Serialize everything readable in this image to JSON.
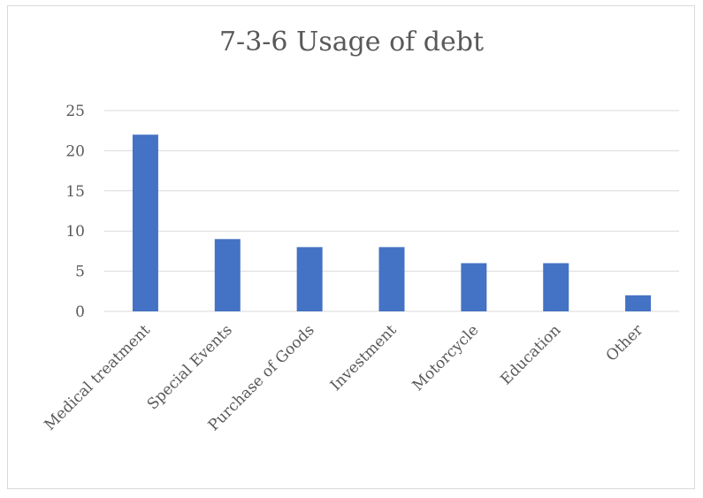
{
  "chart_data": {
    "type": "bar",
    "title": "7-3-6 Usage of debt",
    "xlabel": "",
    "ylabel": "",
    "categories": [
      "Medical treatment",
      "Special Events",
      "Purchase of Goods",
      "Investment",
      "Motorcycle",
      "Education",
      "Other"
    ],
    "series": [
      {
        "values": [
          22,
          9,
          8,
          8,
          6,
          6,
          2
        ]
      }
    ],
    "ylim": [
      0,
      25
    ],
    "yticks": [
      0,
      5,
      10,
      15,
      20,
      25
    ],
    "grid": true,
    "legend": "none",
    "colors": {
      "bar": "#4472c4",
      "grid": "#d9d9d9",
      "text": "#595959"
    }
  }
}
